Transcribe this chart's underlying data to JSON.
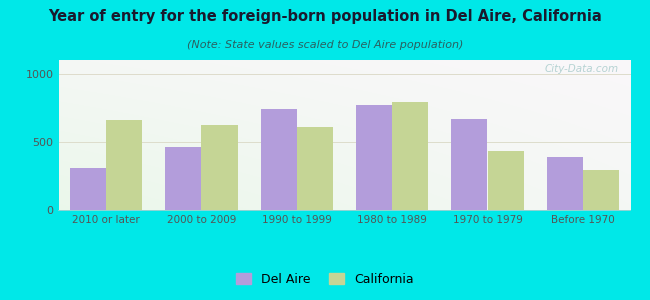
{
  "title": "Year of entry for the foreign-born population in Del Aire, California",
  "subtitle": "(Note: State values scaled to Del Aire population)",
  "categories": [
    "2010 or later",
    "2000 to 2009",
    "1990 to 1999",
    "1980 to 1989",
    "1970 to 1979",
    "Before 1970"
  ],
  "del_aire": [
    310,
    460,
    740,
    770,
    670,
    390
  ],
  "california": [
    660,
    620,
    610,
    790,
    430,
    290
  ],
  "del_aire_color": "#b39ddb",
  "california_color": "#c5d595",
  "background_outer": "#00e8e8",
  "ylim": [
    0,
    1100
  ],
  "yticks": [
    0,
    500,
    1000
  ],
  "bar_width": 0.38,
  "legend_del_aire": "Del Aire",
  "legend_california": "California",
  "watermark": "City-Data.com",
  "title_color": "#1a1a2e",
  "subtitle_color": "#2a6060",
  "tick_color": "#555555",
  "watermark_color": "#aacccc"
}
